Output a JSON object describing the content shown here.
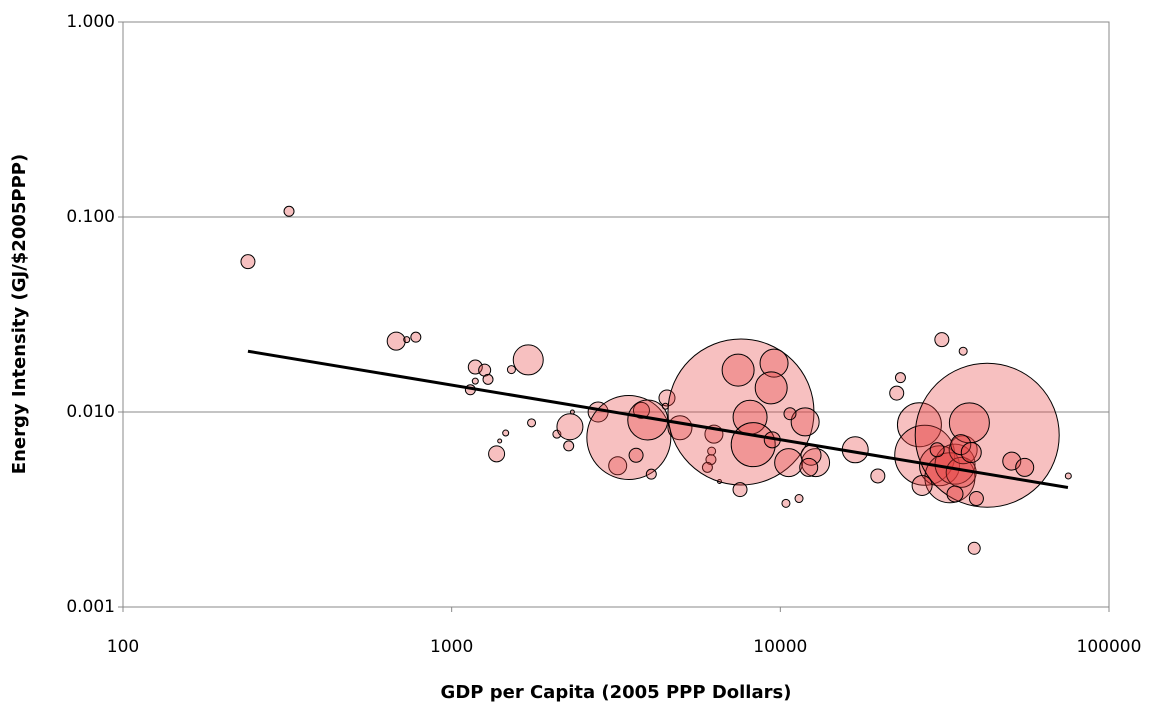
{
  "chart_data": {
    "type": "bubble",
    "x_label": "GDP per Capita (2005 PPP Dollars)",
    "y_label": "Energy Intensity (GJ/$2005PPP)",
    "x_log": true,
    "y_log": true,
    "grid": "y",
    "xlim": [
      100,
      100000
    ],
    "xticks": [
      100,
      1000,
      10000,
      100000
    ],
    "ylim": [
      0.001,
      1
    ],
    "yticks": [
      {
        "value": 0.001,
        "label": "0.001"
      },
      {
        "value": 0.01,
        "label": "0.010"
      },
      {
        "value": 0.1,
        "label": "0.100"
      },
      {
        "value": 1,
        "label": "1.000"
      }
    ],
    "color": "#e8413f",
    "x": [
      240,
      320,
      678,
      778,
      730,
      1180,
      1260,
      1290,
      1140,
      1180,
      1520,
      1710,
      1370,
      1400,
      1460,
      1750,
      2090,
      2290,
      2270,
      2330,
      2790,
      3200,
      3460,
      3640,
      3780,
      3950,
      4050,
      4520,
      4470,
      4950,
      6280,
      6150,
      6000,
      6180,
      6530,
      7590,
      7540,
      7440,
      8090,
      8270,
      9570,
      9380,
      9450,
      10600,
      11900,
      12800,
      12400,
      10400,
      11400,
      12200,
      10700,
      16900,
      19800,
      22600,
      23200,
      31000,
      36000,
      26500,
      27500,
      30500,
      32800,
      34000,
      35500,
      36000,
      42600,
      37600,
      35400,
      38100,
      38900,
      50600,
      55400,
      75200,
      39500,
      27000,
      34000,
      30000
    ],
    "values": [
      0.059,
      0.107,
      0.0231,
      0.0242,
      0.0235,
      0.017,
      0.0164,
      0.0147,
      0.013,
      0.0144,
      0.0165,
      0.0185,
      0.0061,
      0.0071,
      0.0078,
      0.0088,
      0.0077,
      0.0084,
      0.0067,
      0.01,
      0.01,
      0.0053,
      0.0074,
      0.006,
      0.0102,
      0.0091,
      0.0048,
      0.0118,
      0.0107,
      0.0083,
      0.0077,
      0.0057,
      0.0052,
      0.0063,
      0.0044,
      0.01,
      0.004,
      0.0164,
      0.0094,
      0.0068,
      0.0178,
      0.0133,
      0.0072,
      0.0055,
      0.0089,
      0.0055,
      0.006,
      0.0034,
      0.0036,
      0.0052,
      0.0098,
      0.0064,
      0.0047,
      0.0125,
      0.015,
      0.0235,
      0.0205,
      0.0086,
      0.006,
      0.0053,
      0.0046,
      0.0054,
      0.0049,
      0.0064,
      0.0076,
      0.0088,
      0.0068,
      0.0062,
      0.002,
      0.0056,
      0.0052,
      0.0047,
      0.0036,
      0.0042,
      0.0038,
      0.0064
    ],
    "sizes": [
      49,
      25,
      81,
      25,
      9,
      49,
      36,
      25,
      25,
      9,
      16,
      225,
      64,
      4,
      9,
      16,
      16,
      169,
      25,
      4,
      100,
      81,
      1764,
      49,
      64,
      400,
      25,
      64,
      9,
      144,
      81,
      25,
      25,
      16,
      4,
      5329,
      49,
      256,
      289,
      484,
      196,
      256,
      64,
      196,
      196,
      196,
      100,
      16,
      16,
      81,
      36,
      169,
      49,
      49,
      25,
      49,
      16,
      484,
      900,
      400,
      625,
      400,
      225,
      196,
      5184,
      400,
      100,
      100,
      36,
      81,
      81,
      9,
      49,
      100,
      64,
      49
    ],
    "trendline": {
      "color": "#000000",
      "x": [
        240,
        75000
      ],
      "values": [
        0.0205,
        0.0041
      ]
    }
  }
}
